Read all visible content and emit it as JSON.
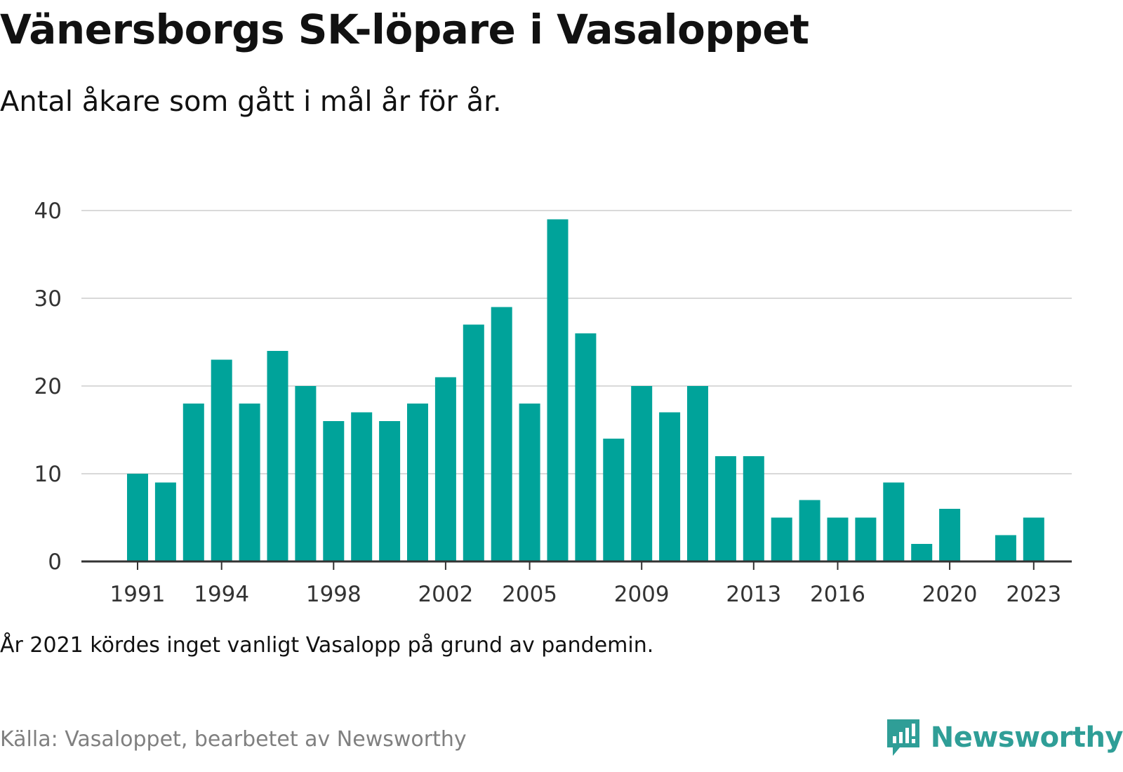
{
  "title": "Vänersborgs SK-löpare i Vasaloppet",
  "subtitle": "Antal åkare som gått i mål år för år.",
  "note": "År 2021 kördes inget vanligt Vasalopp på grund av pandemin.",
  "source": "Källa: Vasaloppet, bearbetet av Newsworthy",
  "brand": {
    "name": "Newsworthy",
    "icon": "newsworthy-logo-icon"
  },
  "colors": {
    "bar": "#00a39a",
    "grid": "#d9d9d9",
    "axis": "#333333",
    "brand": "#2f9e97"
  },
  "chart_data": {
    "type": "bar",
    "x": [
      1991,
      1992,
      1993,
      1994,
      1995,
      1996,
      1997,
      1998,
      1999,
      2000,
      2001,
      2002,
      2003,
      2004,
      2005,
      2006,
      2007,
      2008,
      2009,
      2010,
      2011,
      2012,
      2013,
      2014,
      2015,
      2016,
      2017,
      2018,
      2019,
      2020,
      2021,
      2022,
      2023
    ],
    "values": [
      10,
      9,
      18,
      23,
      18,
      24,
      20,
      16,
      17,
      16,
      18,
      21,
      27,
      29,
      18,
      39,
      26,
      14,
      20,
      17,
      20,
      12,
      12,
      5,
      7,
      5,
      5,
      9,
      2,
      6,
      null,
      3,
      5
    ],
    "x_tick_labels": [
      "1991",
      "1994",
      "1998",
      "2002",
      "2005",
      "2009",
      "2013",
      "2016",
      "2020",
      "2023"
    ],
    "y_ticks": [
      0,
      10,
      20,
      30,
      40
    ],
    "ylim": [
      0,
      40
    ],
    "grid": true,
    "legend": "none"
  }
}
